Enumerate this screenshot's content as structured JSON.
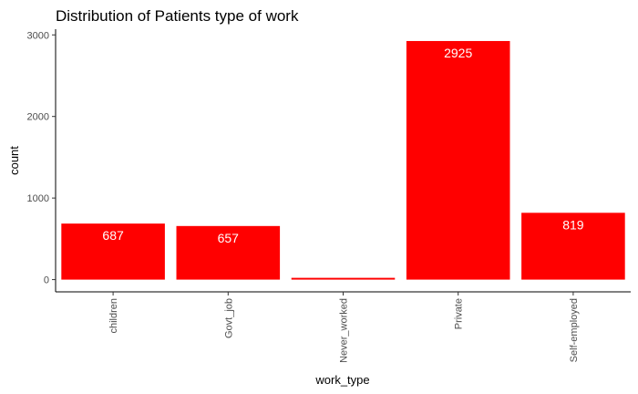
{
  "chart_data": {
    "type": "bar",
    "title": "Distribution of Patients type of work",
    "xlabel": "work_type",
    "ylabel": "count",
    "categories": [
      "children",
      "Govt_job",
      "Never_worked",
      "Private",
      "Self-employed"
    ],
    "values": [
      687,
      657,
      22,
      2925,
      819
    ],
    "data_labels": [
      "687",
      "657",
      "",
      "2925",
      "819"
    ],
    "yticks": [
      0,
      1000,
      2000,
      3000
    ],
    "ylim": [
      -150,
      3070
    ],
    "bar_color": "#ff0000",
    "data_label_color": "#ffffff",
    "grid": false,
    "legend": "none",
    "x_tick_label_rotation": "vertical"
  }
}
